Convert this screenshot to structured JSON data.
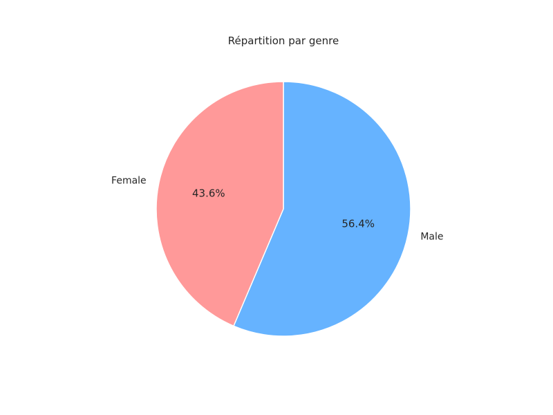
{
  "chart_data": {
    "type": "pie",
    "title": "Répartition par genre",
    "slices": [
      {
        "label": "Male",
        "value": 56.4,
        "pct_label": "56.4%",
        "color": "#66b3ff"
      },
      {
        "label": "Female",
        "value": 43.6,
        "pct_label": "43.6%",
        "color": "#ff9999"
      }
    ],
    "start_angle_deg": 90,
    "direction": "clockwise",
    "edge_color": "#ffffff"
  }
}
